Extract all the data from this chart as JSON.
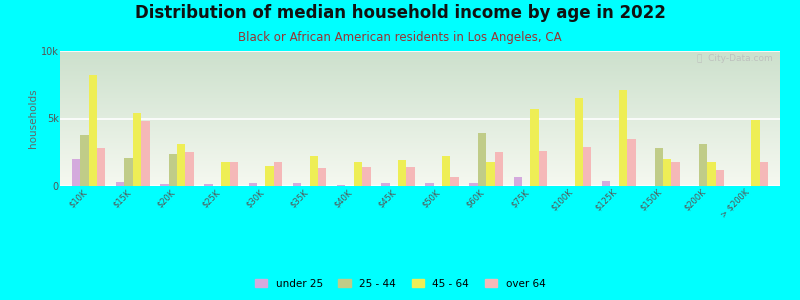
{
  "title": "Distribution of median household income by age in 2022",
  "subtitle": "Black or African American residents in Los Angeles, CA",
  "xlabel": "",
  "ylabel": "households",
  "background_color": "#00FFFF",
  "categories": [
    "$10K",
    "$15K",
    "$20K",
    "$25K",
    "$30K",
    "$35K",
    "$40K",
    "$45K",
    "$50K",
    "$60K",
    "$75K",
    "$100K",
    "$125K",
    "$150K",
    "$200K",
    "> $200K"
  ],
  "series": {
    "under 25": [
      2000,
      300,
      150,
      150,
      200,
      250,
      100,
      250,
      200,
      200,
      700,
      0,
      400,
      0,
      0,
      0
    ],
    "25 - 44": [
      3800,
      2100,
      2400,
      0,
      0,
      0,
      0,
      0,
      0,
      3900,
      0,
      0,
      0,
      2800,
      3100,
      0
    ],
    "45 - 64": [
      8200,
      5400,
      3100,
      1800,
      1500,
      2200,
      1800,
      1900,
      2200,
      1800,
      5700,
      6500,
      7100,
      2000,
      1800,
      4900
    ],
    "over 64": [
      2800,
      4800,
      2500,
      1800,
      1800,
      1300,
      1400,
      1400,
      700,
      2500,
      2600,
      2900,
      3500,
      1800,
      1200,
      1800
    ]
  },
  "colors": {
    "under 25": "#d4aadd",
    "25 - 44": "#c0cc88",
    "45 - 64": "#eeee55",
    "over 64": "#f5b8b8"
  },
  "ylim": [
    0,
    10000
  ],
  "ytick_labels": [
    "0",
    "5k",
    "10k"
  ],
  "ytick_vals": [
    0,
    5000,
    10000
  ],
  "watermark": "ⓘ  City-Data.com",
  "title_fontsize": 12,
  "subtitle_fontsize": 8.5,
  "subtitle_color": "#993333"
}
